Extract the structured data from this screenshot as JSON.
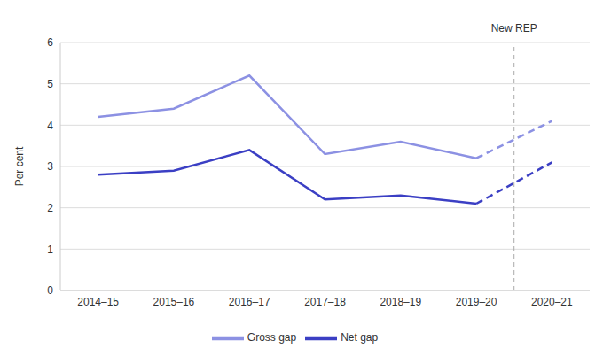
{
  "chart_data": {
    "type": "line",
    "y_label": "Per cent",
    "categories": [
      "2014–15",
      "2015–16",
      "2016–17",
      "2017–18",
      "2018–19",
      "2019–20",
      "2020–21"
    ],
    "series": [
      {
        "name": "Gross gap",
        "color": "#8c91e3",
        "values": [
          4.2,
          4.4,
          5.2,
          3.3,
          3.6,
          3.2,
          4.1
        ]
      },
      {
        "name": "Net gap",
        "color": "#3b3fc4",
        "values": [
          2.8,
          2.9,
          3.4,
          2.2,
          2.3,
          2.1,
          3.1
        ]
      }
    ],
    "ylim": [
      0,
      6
    ],
    "yticks": [
      0,
      1,
      2,
      3,
      4,
      5,
      6
    ],
    "grid": true,
    "legend": "bottom",
    "annotations": [
      {
        "text": "New REP",
        "between": [
          "2019–20",
          "2020–21"
        ]
      }
    ]
  }
}
